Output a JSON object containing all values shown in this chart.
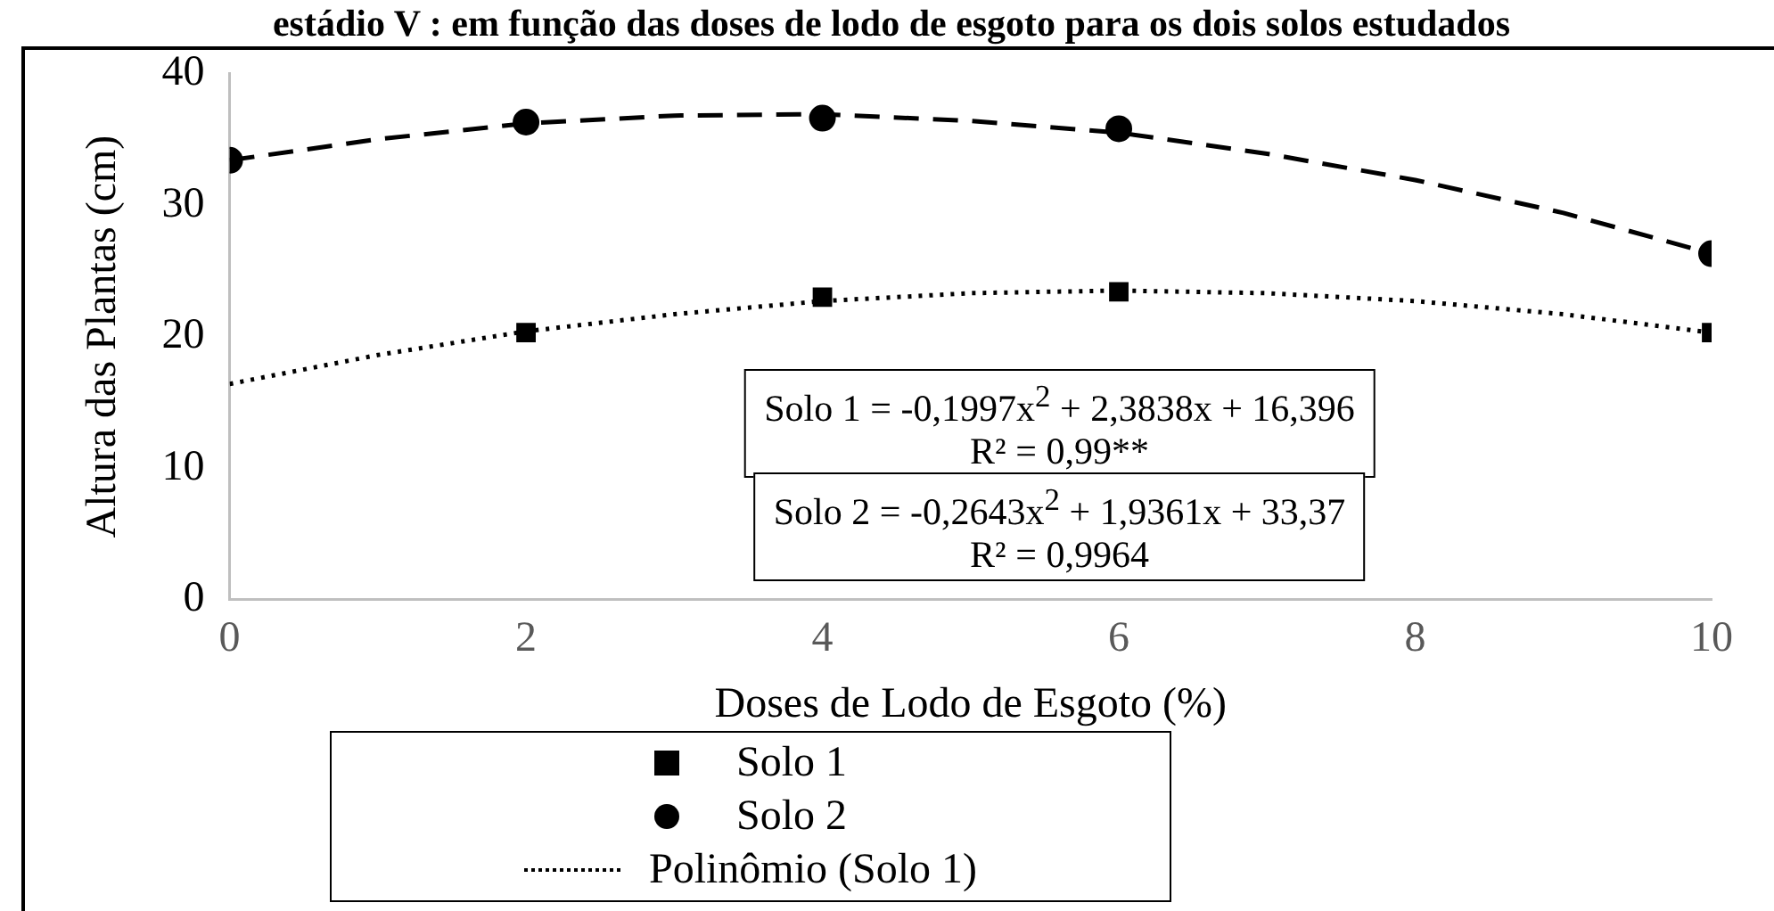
{
  "chart_data": {
    "type": "scatter",
    "title": "estádio V : em função das doses de lodo de esgoto para os dois solos estudados",
    "xlabel": "Doses de Lodo de Esgoto (%)",
    "ylabel": "Altura das Plantas (cm)",
    "xlim": [
      0,
      10
    ],
    "xticks": [
      0,
      2,
      4,
      6,
      8,
      10
    ],
    "ylim": [
      0,
      40
    ],
    "yticks": [
      0,
      10,
      20,
      30,
      40
    ],
    "grid": false,
    "legend": "bottom",
    "series": [
      {
        "name": "Solo 1",
        "marker": "square",
        "color": "#000000",
        "x": [
          2,
          4,
          6,
          10
        ],
        "values": [
          20.3,
          23.0,
          23.4,
          20.3
        ]
      },
      {
        "name": "Solo 2",
        "marker": "circle",
        "color": "#000000",
        "x": [
          0,
          2,
          4,
          6,
          10
        ],
        "values": [
          33.4,
          36.3,
          36.6,
          35.8,
          26.3
        ]
      },
      {
        "name": "Polinômio (Solo 1)",
        "type": "line",
        "marker": "none",
        "line_style": "dotted",
        "color": "#000000",
        "x": [
          0,
          1,
          2,
          3,
          4,
          5,
          6,
          7,
          8,
          9,
          10
        ],
        "values": [
          16.4,
          18.6,
          20.4,
          21.7,
          22.7,
          23.3,
          23.5,
          23.3,
          22.7,
          21.7,
          20.3
        ]
      },
      {
        "type": "line",
        "marker": "none",
        "line_style": "dashed",
        "color": "#000000",
        "x": [
          0,
          1,
          2,
          3,
          4,
          5,
          6,
          7,
          8,
          9,
          10
        ],
        "values": [
          33.4,
          35.0,
          36.2,
          36.8,
          36.9,
          36.4,
          35.5,
          33.9,
          31.9,
          29.4,
          26.3
        ]
      }
    ],
    "annotations": [
      "Solo 1 = -0,1997x$^{2}$ + 2,3838x + 16,396\nR² = 0,99**",
      "Solo 2 = -0,2643x$^{2}$ + 1,9361x + 33,37\nR² = 0,9964"
    ]
  }
}
